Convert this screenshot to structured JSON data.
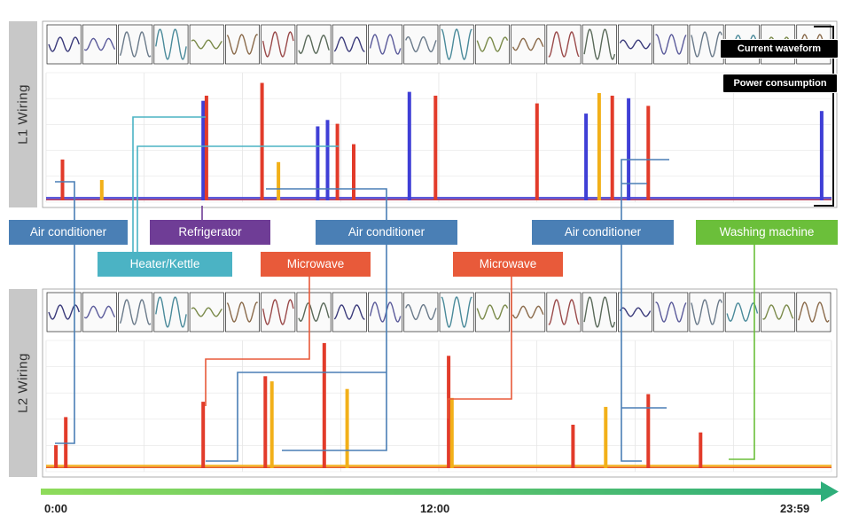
{
  "panels": [
    {
      "label": "L1 Wiring"
    },
    {
      "label": "L2 Wiring"
    }
  ],
  "legend": {
    "current_waveform": "Current waveform",
    "power_consumption": "Power consumption"
  },
  "appliances": [
    {
      "label": "Air conditioner",
      "color": "#4a7fb5"
    },
    {
      "label": "Refrigerator",
      "color": "#6f3d96"
    },
    {
      "label": "Air conditioner",
      "color": "#4a7fb5"
    },
    {
      "label": "Air conditioner",
      "color": "#4a7fb5"
    },
    {
      "label": "Washing machine",
      "color": "#6bbf3a"
    },
    {
      "label": "Heater/Kettle",
      "color": "#4bb3c4"
    },
    {
      "label": "Microwave",
      "color": "#e85a3a"
    },
    {
      "label": "Microwave",
      "color": "#e85a3a"
    }
  ],
  "time_axis": {
    "start": "0:00",
    "mid": "12:00",
    "end": "23:59"
  },
  "chart_data": [
    {
      "type": "bar",
      "xlabel": "",
      "ylabel": "",
      "x_range": [
        "0:00",
        "23:59"
      ],
      "spikes": [
        {
          "t": 0.5,
          "v": 32,
          "color": "#e23b2a"
        },
        {
          "t": 1.7,
          "v": 16,
          "color": "#f2b019"
        },
        {
          "t": 4.8,
          "v": 78,
          "color": "#3f3fd6"
        },
        {
          "t": 4.9,
          "v": 82,
          "color": "#e23b2a"
        },
        {
          "t": 6.6,
          "v": 92,
          "color": "#e23b2a"
        },
        {
          "t": 7.1,
          "v": 30,
          "color": "#f2b019"
        },
        {
          "t": 8.3,
          "v": 58,
          "color": "#3f3fd6"
        },
        {
          "t": 8.6,
          "v": 63,
          "color": "#3f3fd6"
        },
        {
          "t": 8.9,
          "v": 60,
          "color": "#e23b2a"
        },
        {
          "t": 9.4,
          "v": 44,
          "color": "#e23b2a"
        },
        {
          "t": 11.1,
          "v": 85,
          "color": "#3f3fd6"
        },
        {
          "t": 11.9,
          "v": 82,
          "color": "#e23b2a"
        },
        {
          "t": 15.0,
          "v": 76,
          "color": "#e23b2a"
        },
        {
          "t": 16.5,
          "v": 68,
          "color": "#3f3fd6"
        },
        {
          "t": 16.9,
          "v": 84,
          "color": "#f2b019"
        },
        {
          "t": 17.3,
          "v": 82,
          "color": "#e23b2a"
        },
        {
          "t": 17.8,
          "v": 80,
          "color": "#3f3fd6"
        },
        {
          "t": 18.4,
          "v": 74,
          "color": "#e23b2a"
        },
        {
          "t": 23.7,
          "v": 70,
          "color": "#3f3fd6"
        }
      ]
    },
    {
      "type": "bar",
      "xlabel": "",
      "ylabel": "",
      "x_range": [
        "0:00",
        "23:59"
      ],
      "spikes": [
        {
          "t": 0.3,
          "v": 18,
          "color": "#e23b2a"
        },
        {
          "t": 0.6,
          "v": 40,
          "color": "#e23b2a"
        },
        {
          "t": 4.8,
          "v": 52,
          "color": "#e23b2a"
        },
        {
          "t": 6.7,
          "v": 72,
          "color": "#e23b2a"
        },
        {
          "t": 6.9,
          "v": 68,
          "color": "#f2b019"
        },
        {
          "t": 8.5,
          "v": 98,
          "color": "#e23b2a"
        },
        {
          "t": 9.2,
          "v": 62,
          "color": "#f2b019"
        },
        {
          "t": 12.3,
          "v": 88,
          "color": "#e23b2a"
        },
        {
          "t": 12.4,
          "v": 55,
          "color": "#f2b019"
        },
        {
          "t": 16.1,
          "v": 34,
          "color": "#e23b2a"
        },
        {
          "t": 17.1,
          "v": 48,
          "color": "#f2b019"
        },
        {
          "t": 18.4,
          "v": 58,
          "color": "#e23b2a"
        },
        {
          "t": 20.0,
          "v": 28,
          "color": "#e23b2a"
        }
      ]
    }
  ]
}
